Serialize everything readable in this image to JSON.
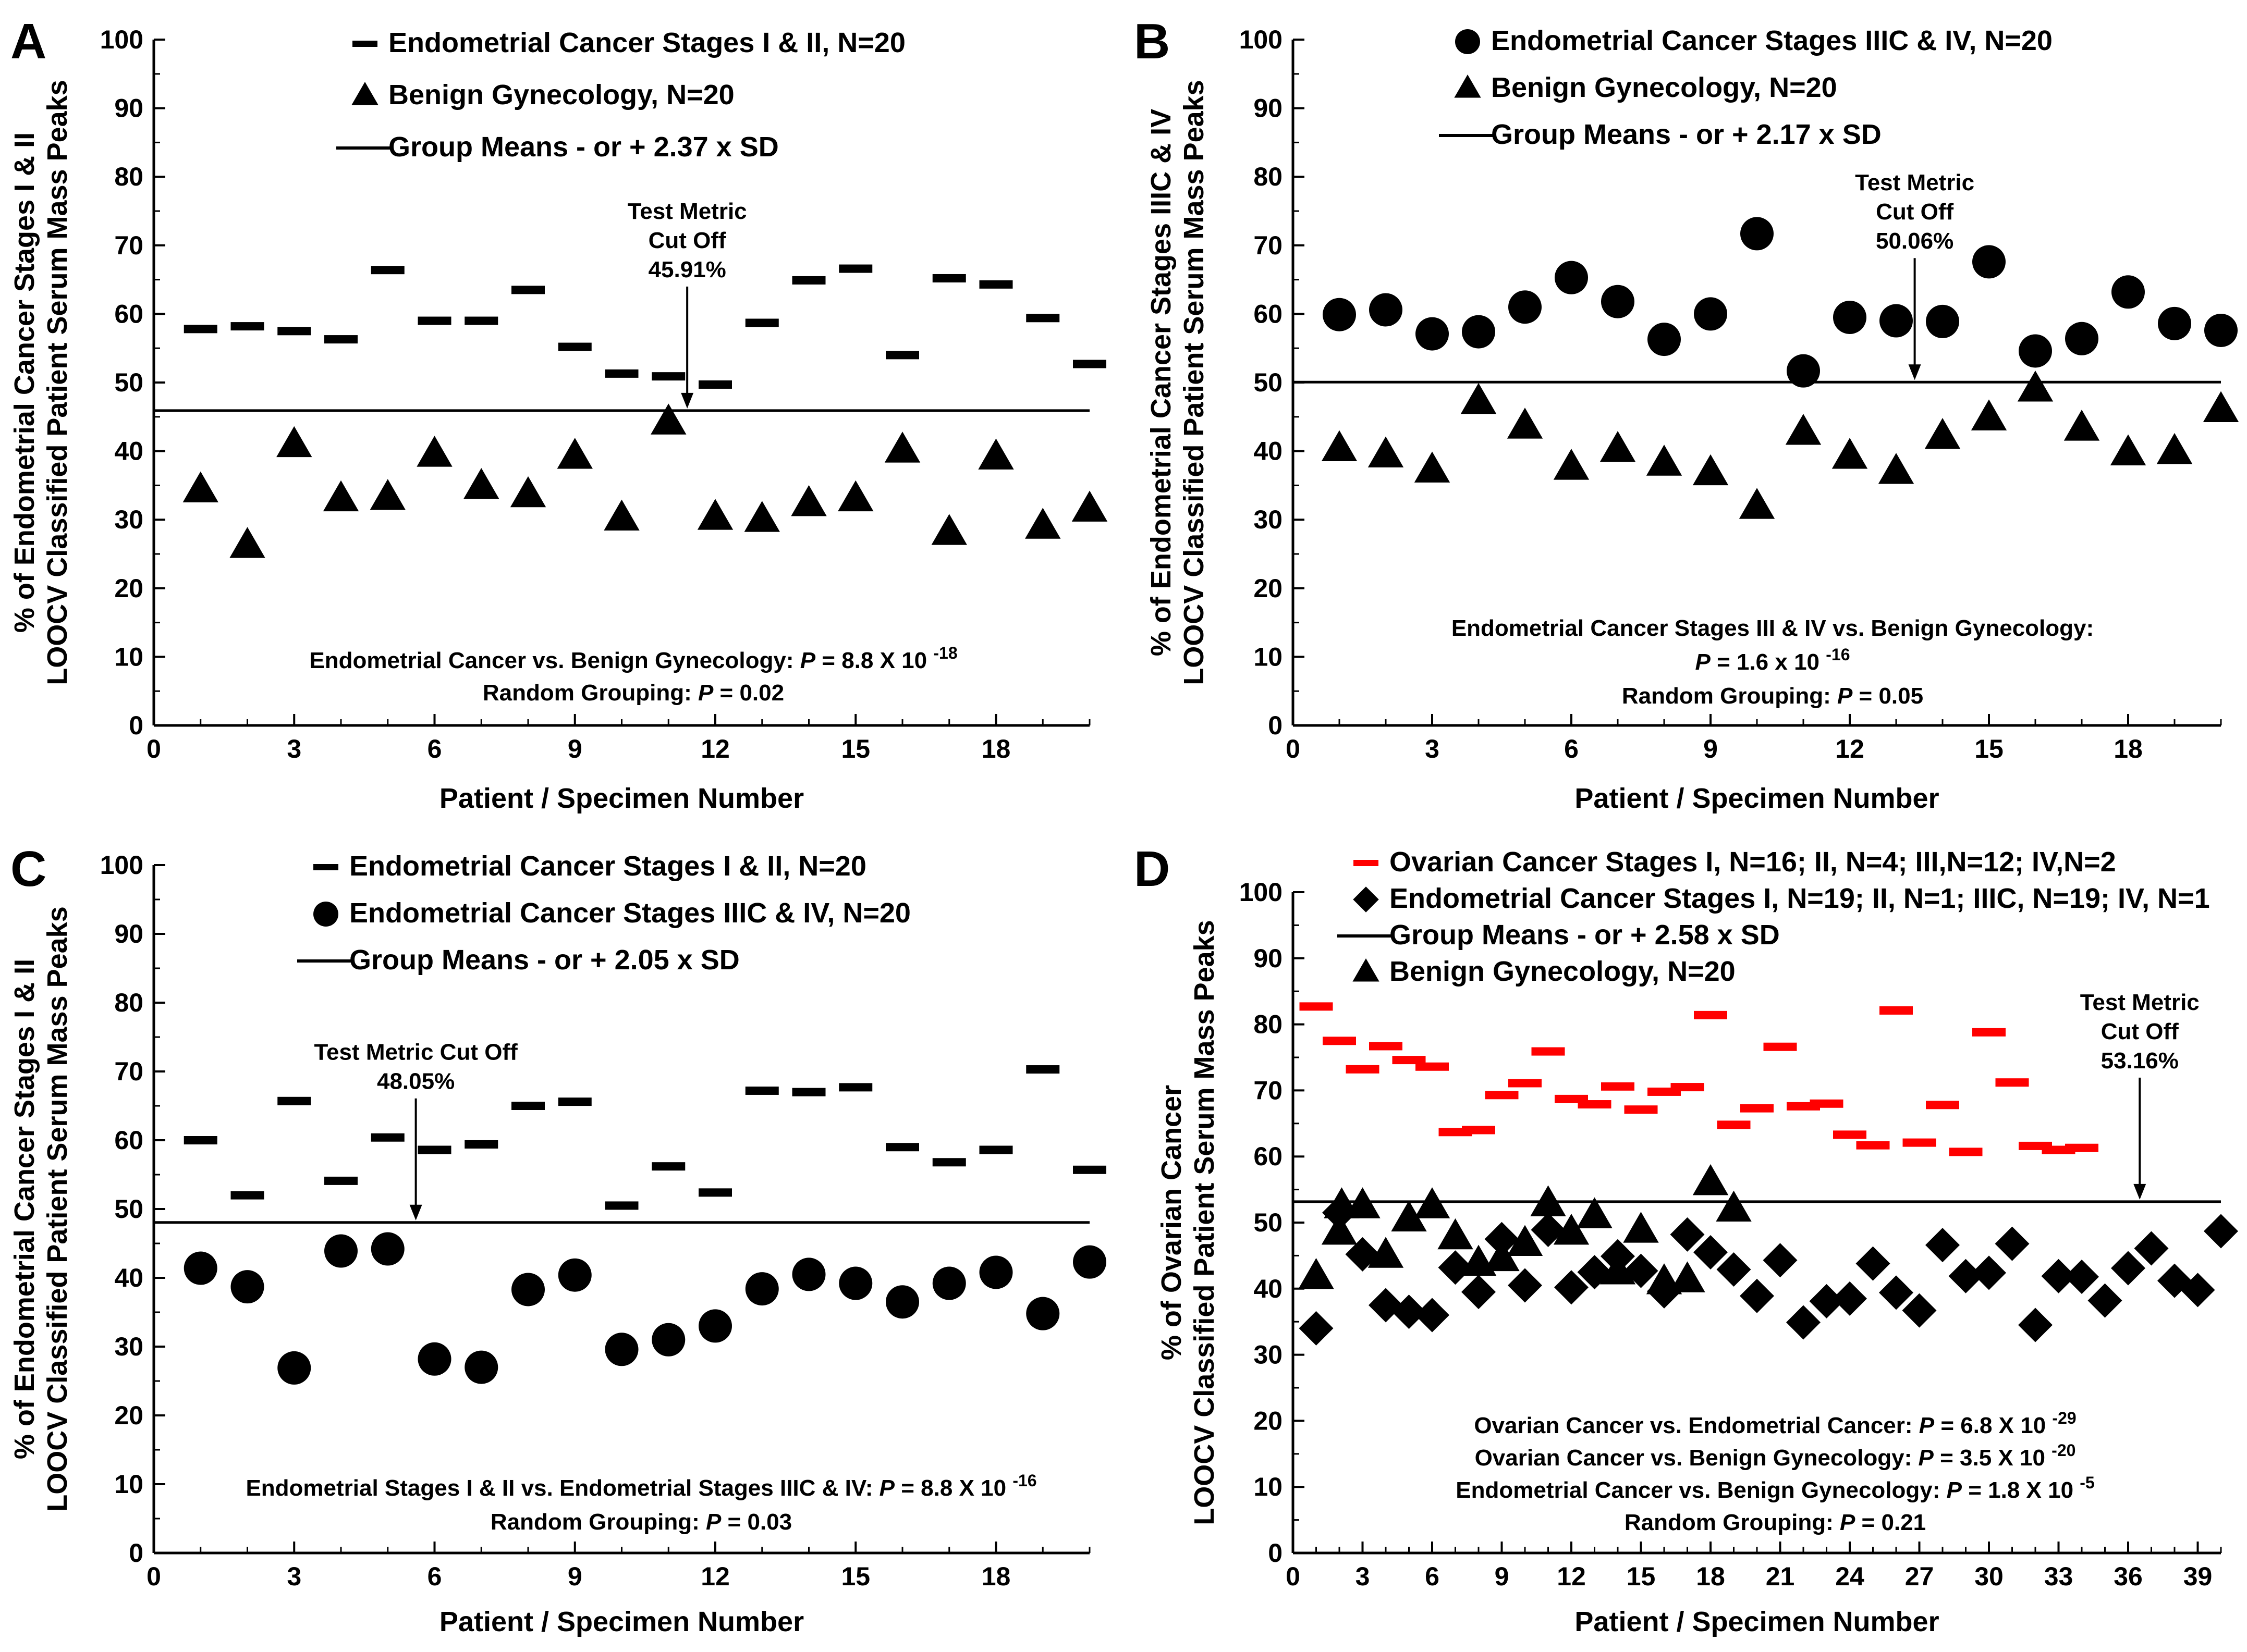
{
  "chart_data": [
    {
      "type": "scatter",
      "panel_label": "A",
      "title": "",
      "xlabel": "Patient / Specimen Number",
      "ylabel_lines": [
        "% of Endometrial Cancer Stages I & II",
        "LOOCV Classified Patient Serum Mass Peaks"
      ],
      "xlim": [
        0,
        20
      ],
      "ylim": [
        0,
        100
      ],
      "xticks": [
        0,
        3,
        6,
        9,
        12,
        15,
        18
      ],
      "yticks": [
        0,
        10,
        20,
        30,
        40,
        50,
        60,
        70,
        80,
        90,
        100
      ],
      "legend": [
        {
          "marker": "dash",
          "color": "#000000",
          "label": "Endometrial Cancer Stages I & II, N=20"
        },
        {
          "marker": "triangle",
          "color": "#000000",
          "label": "Benign Gynecology, N=20"
        },
        {
          "marker": "line",
          "color": "#000000",
          "label": "Group Means - or + 2.37 x SD"
        }
      ],
      "series": [
        {
          "name": "Endometrial Cancer Stages I & II, N=20",
          "marker": "dash",
          "color": "#000000",
          "x": [
            1,
            2,
            3,
            4,
            5,
            6,
            7,
            8,
            9,
            10,
            11,
            12,
            13,
            14,
            15,
            16,
            17,
            18,
            19,
            20
          ],
          "y": [
            57.8,
            58.2,
            57.5,
            56.3,
            66.4,
            59.0,
            59.0,
            63.5,
            55.2,
            51.3,
            50.9,
            49.7,
            58.7,
            64.9,
            66.6,
            54.0,
            65.2,
            64.3,
            59.4,
            52.7
          ]
        },
        {
          "name": "Benign Gynecology, N=20",
          "marker": "triangle",
          "color": "#000000",
          "x": [
            1,
            2,
            3,
            4,
            5,
            6,
            7,
            8,
            9,
            10,
            11,
            12,
            13,
            14,
            15,
            16,
            17,
            18,
            19,
            20
          ],
          "y": [
            34.3,
            26.2,
            40.9,
            33.0,
            33.2,
            39.5,
            34.8,
            33.6,
            39.2,
            30.2,
            44.2,
            30.3,
            30.0,
            32.3,
            33.0,
            40.1,
            28.1,
            39.1,
            29.0,
            31.5
          ]
        }
      ],
      "cutoff": {
        "value": 45.91,
        "label_lines": [
          "Test Metric",
          "Cut Off",
          "45.91%"
        ],
        "arrow_x": 11.4
      },
      "annotations": [
        [
          {
            "t": "Endometrial Cancer vs. Benign Gynecology: "
          },
          {
            "t": "P",
            "i": true
          },
          {
            "t": " = 8.8 X 10 "
          },
          {
            "t": "-18",
            "sup": true
          }
        ],
        [
          {
            "t": "Random Grouping: "
          },
          {
            "t": "P",
            "i": true
          },
          {
            "t": " = 0.02"
          }
        ]
      ]
    },
    {
      "type": "scatter",
      "panel_label": "B",
      "title": "",
      "xlabel": "Patient / Specimen Number",
      "ylabel_lines": [
        "% of Endometrial Cancer Stages IIIC & IV",
        "LOOCV Classified Patient Serum Mass Peaks"
      ],
      "xlim": [
        0,
        20
      ],
      "ylim": [
        0,
        100
      ],
      "xticks": [
        0,
        3,
        6,
        9,
        12,
        15,
        18
      ],
      "yticks": [
        0,
        10,
        20,
        30,
        40,
        50,
        60,
        70,
        80,
        90,
        100
      ],
      "legend": [
        {
          "marker": "circle",
          "color": "#000000",
          "label": "Endometrial Cancer Stages IIIC & IV, N=20"
        },
        {
          "marker": "triangle",
          "color": "#000000",
          "label": "Benign Gynecology, N=20"
        },
        {
          "marker": "line",
          "color": "#000000",
          "label": "Group Means - or + 2.17 x SD"
        }
      ],
      "series": [
        {
          "name": "Endometrial Cancer Stages IIIC & IV, N=20",
          "marker": "circle",
          "color": "#000000",
          "x": [
            1,
            2,
            3,
            4,
            5,
            6,
            7,
            8,
            9,
            10,
            11,
            12,
            13,
            14,
            15,
            16,
            17,
            18,
            19,
            20
          ],
          "y": [
            59.9,
            60.6,
            57.1,
            57.4,
            61.0,
            65.3,
            61.8,
            56.3,
            60.0,
            71.7,
            51.7,
            59.5,
            59.0,
            58.9,
            67.6,
            54.6,
            56.4,
            63.2,
            58.6,
            57.6
          ]
        },
        {
          "name": "Benign Gynecology, N=20",
          "marker": "triangle",
          "color": "#000000",
          "x": [
            1,
            2,
            3,
            4,
            5,
            6,
            7,
            8,
            9,
            10,
            11,
            12,
            13,
            14,
            15,
            16,
            17,
            18,
            19,
            20
          ],
          "y": [
            40.3,
            39.4,
            37.2,
            47.2,
            43.6,
            37.6,
            40.2,
            38.2,
            36.8,
            31.9,
            42.7,
            39.2,
            37.0,
            42.1,
            44.8,
            49.0,
            43.3,
            39.7,
            39.9,
            46.0
          ]
        }
      ],
      "cutoff": {
        "value": 50.06,
        "label_lines": [
          "Test Metric",
          "Cut Off",
          "50.06%"
        ],
        "arrow_x": 13.4
      },
      "annotations": [
        [
          {
            "t": "Endometrial Cancer Stages III & IV vs. Benign Gynecology:"
          }
        ],
        [
          {
            "t": "P",
            "i": true
          },
          {
            "t": " = 1.6 x 10 "
          },
          {
            "t": "-16",
            "sup": true
          }
        ],
        [
          {
            "t": "Random Grouping: "
          },
          {
            "t": "P",
            "i": true
          },
          {
            "t": " = 0.05"
          }
        ]
      ]
    },
    {
      "type": "scatter",
      "panel_label": "C",
      "title": "",
      "xlabel": "Patient / Specimen Number",
      "ylabel_lines": [
        "% of Endometrial Cancer Stages I & II",
        "LOOCV Classified Patient Serum Mass Peaks"
      ],
      "xlim": [
        0,
        20
      ],
      "ylim": [
        0,
        100
      ],
      "xticks": [
        0,
        3,
        6,
        9,
        12,
        15,
        18
      ],
      "yticks": [
        0,
        10,
        20,
        30,
        40,
        50,
        60,
        70,
        80,
        90,
        100
      ],
      "legend": [
        {
          "marker": "dash",
          "color": "#000000",
          "label": "Endometrial Cancer Stages I & II, N=20"
        },
        {
          "marker": "circle",
          "color": "#000000",
          "label": "Endometrial Cancer Stages IIIC & IV, N=20"
        },
        {
          "marker": "line",
          "color": "#000000",
          "label": "Group Means - or + 2.05 x SD"
        }
      ],
      "series": [
        {
          "name": "Endometrial Cancer Stages I & II, N=20",
          "marker": "dash",
          "color": "#000000",
          "x": [
            1,
            2,
            3,
            4,
            5,
            6,
            7,
            8,
            9,
            10,
            11,
            12,
            13,
            14,
            15,
            16,
            17,
            18,
            19,
            20
          ],
          "y": [
            60.0,
            52.0,
            65.7,
            54.1,
            60.4,
            58.6,
            59.4,
            65.0,
            65.6,
            50.5,
            56.2,
            52.4,
            67.2,
            67.0,
            67.7,
            59.0,
            56.8,
            58.6,
            70.3,
            55.7
          ]
        },
        {
          "name": "Endometrial Cancer Stages IIIC & IV, N=20",
          "marker": "circle",
          "color": "#000000",
          "x": [
            1,
            2,
            3,
            4,
            5,
            6,
            7,
            8,
            9,
            10,
            11,
            12,
            13,
            14,
            15,
            16,
            17,
            18,
            19,
            20
          ],
          "y": [
            41.4,
            38.7,
            26.9,
            43.9,
            44.2,
            28.2,
            27.0,
            38.3,
            40.4,
            29.6,
            31.0,
            33.0,
            38.4,
            40.5,
            39.2,
            36.5,
            39.2,
            40.8,
            34.8,
            42.3
          ]
        }
      ],
      "cutoff": {
        "value": 48.05,
        "label_lines": [
          "Test Metric Cut Off",
          "48.05%"
        ],
        "arrow_x": 5.6
      },
      "annotations": [
        [
          {
            "t": "Endometrial Stages I & II vs. Endometrial Stages IIIC & IV: "
          },
          {
            "t": "P",
            "i": true
          },
          {
            "t": " = 8.8 X 10 "
          },
          {
            "t": "-16",
            "sup": true
          }
        ],
        [
          {
            "t": "Random Grouping: "
          },
          {
            "t": "P",
            "i": true
          },
          {
            "t": " = 0.03"
          }
        ]
      ]
    },
    {
      "type": "scatter",
      "panel_label": "D",
      "title": "",
      "xlabel": "Patient / Specimen Number",
      "ylabel_lines": [
        "% of Ovarian Cancer",
        "LOOCV Classified Patient Serum Mass Peaks"
      ],
      "xlim": [
        0,
        40
      ],
      "ylim": [
        0,
        100
      ],
      "xticks": [
        0,
        3,
        6,
        9,
        12,
        15,
        18,
        21,
        24,
        27,
        30,
        33,
        36,
        39
      ],
      "yticks": [
        0,
        10,
        20,
        30,
        40,
        50,
        60,
        70,
        80,
        90,
        100
      ],
      "legend": [
        {
          "marker": "dash",
          "color": "#ff0000",
          "label": "Ovarian Cancer Stages I, N=16; II, N=4; III,N=12; IV,N=2"
        },
        {
          "marker": "diamond",
          "color": "#000000",
          "label": "Endometrial Cancer Stages I, N=19; II, N=1; IIIC, N=19; IV, N=1"
        },
        {
          "marker": "line",
          "color": "#000000",
          "label": "Group Means - or + 2.58 x SD"
        },
        {
          "marker": "triangle",
          "color": "#000000",
          "label": "Benign Gynecology, N=20"
        }
      ],
      "series": [
        {
          "name": "Ovarian Cancer Stages I, N=16; II, N=4; III,N=12; IV,N=2",
          "marker": "dash",
          "color": "#ff0000",
          "x": [
            1,
            2,
            3,
            4,
            5,
            6,
            7,
            8,
            9,
            10,
            11,
            12,
            13,
            14,
            15,
            16,
            17,
            18,
            19,
            20,
            21,
            22,
            23,
            24,
            25,
            26,
            27,
            28,
            29,
            30,
            31,
            32,
            33,
            34
          ],
          "y": [
            82.7,
            77.5,
            73.2,
            76.7,
            74.6,
            73.6,
            63.7,
            64.0,
            69.3,
            71.1,
            75.9,
            68.7,
            67.9,
            70.6,
            67.1,
            69.8,
            70.5,
            81.4,
            64.8,
            67.3,
            76.6,
            67.6,
            68.0,
            63.3,
            61.7,
            82.1,
            62.1,
            67.8,
            60.7,
            78.8,
            71.2,
            61.6,
            61.0,
            61.3
          ]
        },
        {
          "name": "Endometrial Cancer Stages I, N=19; II, N=1; IIIC, N=19; IV, N=1",
          "marker": "diamond",
          "color": "#000000",
          "x": [
            1,
            2,
            3,
            4,
            5,
            6,
            7,
            8,
            9,
            10,
            11,
            12,
            13,
            14,
            15,
            16,
            17,
            18,
            19,
            20,
            21,
            22,
            23,
            24,
            25,
            26,
            27,
            28,
            29,
            30,
            31,
            32,
            33,
            34,
            35,
            36,
            37,
            38,
            39,
            40
          ],
          "y": [
            34.0,
            51.5,
            45.2,
            37.5,
            36.5,
            36.0,
            43.2,
            39.5,
            47.5,
            40.5,
            48.9,
            40.2,
            42.5,
            44.9,
            42.7,
            39.6,
            48.2,
            45.5,
            42.9,
            38.9,
            44.3,
            34.9,
            38.1,
            38.5,
            43.8,
            39.4,
            36.7,
            46.6,
            41.9,
            42.4,
            46.8,
            34.5,
            41.9,
            41.8,
            38.2,
            43.1,
            46.1,
            41.2,
            39.8,
            48.7
          ]
        },
        {
          "name": "Benign Gynecology, N=20",
          "marker": "triangle",
          "color": "#000000",
          "x": [
            1,
            2,
            2.1,
            3,
            4,
            5,
            6,
            7,
            8,
            9,
            10,
            11,
            12,
            13,
            14,
            15,
            16,
            17,
            18,
            19
          ],
          "y": [
            41.8,
            48.5,
            52.5,
            52.5,
            45.0,
            50.5,
            52.5,
            47.8,
            43.8,
            44.5,
            46.8,
            52.8,
            48.5,
            51.0,
            42.5,
            48.8,
            41.0,
            41.3,
            56.0,
            52.0
          ]
        }
      ],
      "cutoff": {
        "value": 53.16,
        "label_lines": [
          "Test Metric",
          "Cut Off",
          "53.16%"
        ],
        "arrow_x": 36.5
      },
      "annotations": [
        [
          {
            "t": "Ovarian Cancer vs. Endometrial Cancer: "
          },
          {
            "t": "P",
            "i": true
          },
          {
            "t": " = 6.8 X 10 "
          },
          {
            "t": "-29",
            "sup": true
          }
        ],
        [
          {
            "t": "Ovarian Cancer vs. Benign Gynecology: "
          },
          {
            "t": "P",
            "i": true
          },
          {
            "t": " = 3.5 X 10 "
          },
          {
            "t": "-20",
            "sup": true
          }
        ],
        [
          {
            "t": "Endometrial Cancer vs. Benign Gynecology: "
          },
          {
            "t": "P",
            "i": true
          },
          {
            "t": " = 1.8 X 10 "
          },
          {
            "t": "-5",
            "sup": true
          }
        ],
        [
          {
            "t": "Random Grouping: "
          },
          {
            "t": "P",
            "i": true
          },
          {
            "t": " = 0.21"
          }
        ]
      ]
    }
  ]
}
